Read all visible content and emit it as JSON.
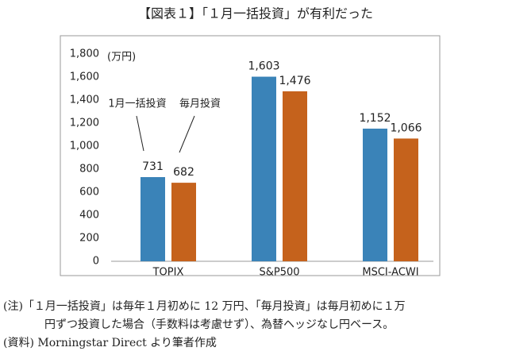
{
  "chart_data": {
    "type": "bar",
    "title": "【図表１】「１月一括投資」が有利だった",
    "y_unit": "(万円)",
    "categories": [
      "TOPIX",
      "S&P500",
      "MSCI-ACWI"
    ],
    "series": [
      {
        "name": "1月一括投資",
        "color": "#3a83b8",
        "values": [
          731,
          1603,
          1152
        ],
        "value_labels": [
          "731",
          "1,603",
          "1,152"
        ]
      },
      {
        "name": "毎月投資",
        "color": "#c5621c",
        "values": [
          682,
          1476,
          1066
        ],
        "value_labels": [
          "682",
          "1,476",
          "1,066"
        ]
      }
    ],
    "ylim": [
      0,
      1800
    ],
    "yticks": [
      0,
      200,
      400,
      600,
      800,
      {
        "value": 1000,
        "label": "1,000"
      },
      {
        "value": 1200,
        "label": "1,200"
      },
      {
        "value": 1400,
        "label": "1,400"
      },
      {
        "value": 1600,
        "label": "1,600"
      },
      {
        "value": 1800,
        "label": "1,800"
      }
    ],
    "grid": false,
    "notes": [
      "(注)「１月一括投資」は毎年１月初めに 12 万円、「毎月投資」は毎月初めに１万",
      "円ずつ投資した場合（手数料は考慮せず）、為替ヘッジなし円ベース。",
      "(資料) Morningstar Direct より筆者作成"
    ]
  }
}
